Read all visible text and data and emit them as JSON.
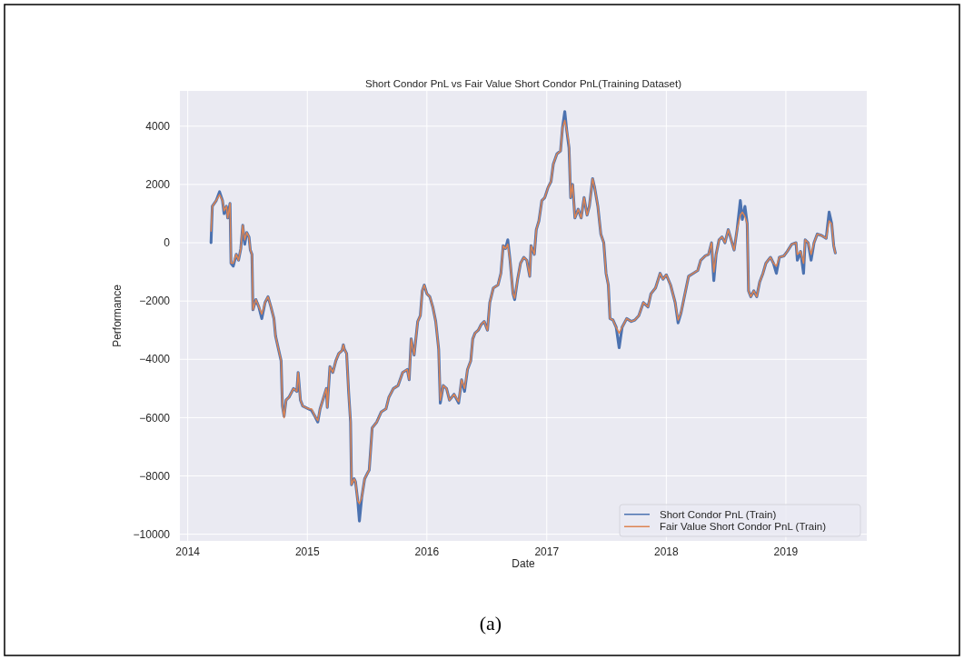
{
  "chart_data": {
    "type": "line",
    "title": "Short Condor PnL vs Fair Value Short Condor PnL(Training Dataset)",
    "xlabel": "Date",
    "ylabel": "Performance",
    "annotations": [
      "(a)"
    ],
    "x": [
      "2014-03-13",
      "2014-03-17",
      "2014-03-29",
      "2014-04-08",
      "2014-04-17",
      "2014-04-22",
      "2014-04-29",
      "2014-05-03",
      "2014-05-10",
      "2014-05-13",
      "2014-05-20",
      "2014-05-29",
      "2014-06-05",
      "2014-06-12",
      "2014-06-18",
      "2014-06-24",
      "2014-06-30",
      "2014-07-07",
      "2014-07-11",
      "2014-07-16",
      "2014-07-19",
      "2014-07-28",
      "2014-08-06",
      "2014-08-15",
      "2014-08-25",
      "2014-09-03",
      "2014-09-12",
      "2014-09-21",
      "2014-09-26",
      "2014-10-05",
      "2014-10-13",
      "2014-10-17",
      "2014-10-22",
      "2014-10-28",
      "2014-11-06",
      "2014-11-20",
      "2014-11-30",
      "2014-12-04",
      "2014-12-11",
      "2014-12-18",
      "2015-01-05",
      "2015-01-14",
      "2015-01-24",
      "2015-02-02",
      "2015-02-09",
      "2015-02-20",
      "2015-02-28",
      "2015-03-03",
      "2015-03-11",
      "2015-03-20",
      "2015-03-29",
      "2015-04-07",
      "2015-04-17",
      "2015-04-21",
      "2015-04-24",
      "2015-05-01",
      "2015-05-07",
      "2015-05-13",
      "2015-05-16",
      "2015-05-24",
      "2015-05-28",
      "2015-06-04",
      "2015-06-09",
      "2015-06-16",
      "2015-06-25",
      "2015-07-04",
      "2015-07-09",
      "2015-07-18",
      "2015-08-01",
      "2015-08-15",
      "2015-08-29",
      "2015-09-07",
      "2015-09-21",
      "2015-10-05",
      "2015-10-19",
      "2015-11-02",
      "2015-11-08",
      "2015-11-14",
      "2015-11-23",
      "2015-12-04",
      "2015-12-12",
      "2015-12-18",
      "2015-12-24",
      "2016-01-01",
      "2016-01-10",
      "2016-01-19",
      "2016-01-28",
      "2016-02-06",
      "2016-02-11",
      "2016-02-20",
      "2016-03-01",
      "2016-03-10",
      "2016-03-24",
      "2016-04-07",
      "2016-04-16",
      "2016-04-25",
      "2016-05-04",
      "2016-05-14",
      "2016-05-20",
      "2016-05-27",
      "2016-06-06",
      "2016-06-15",
      "2016-06-24",
      "2016-07-04",
      "2016-07-11",
      "2016-07-22",
      "2016-08-05",
      "2016-08-14",
      "2016-08-21",
      "2016-08-28",
      "2016-09-04",
      "2016-09-11",
      "2016-09-20",
      "2016-09-25",
      "2016-10-04",
      "2016-10-13",
      "2016-10-23",
      "2016-11-01",
      "2016-11-10",
      "2016-11-14",
      "2016-11-24",
      "2016-11-30",
      "2016-12-08",
      "2016-12-17",
      "2016-12-26",
      "2017-01-05",
      "2017-01-14",
      "2017-01-21",
      "2017-02-01",
      "2017-02-12",
      "2017-02-18",
      "2017-02-25",
      "2017-03-03",
      "2017-03-10",
      "2017-03-15",
      "2017-03-21",
      "2017-03-28",
      "2017-04-07",
      "2017-04-16",
      "2017-04-25",
      "2017-05-04",
      "2017-05-11",
      "2017-05-21",
      "2017-05-27",
      "2017-06-06",
      "2017-06-15",
      "2017-06-24",
      "2017-07-01",
      "2017-07-08",
      "2017-07-13",
      "2017-07-22",
      "2017-08-01",
      "2017-08-10",
      "2017-08-19",
      "2017-09-02",
      "2017-09-16",
      "2017-09-27",
      "2017-10-09",
      "2017-10-23",
      "2017-11-06",
      "2017-11-15",
      "2017-11-29",
      "2017-12-13",
      "2017-12-22",
      "2018-01-01",
      "2018-01-14",
      "2018-01-28",
      "2018-02-06",
      "2018-02-15",
      "2018-02-25",
      "2018-03-10",
      "2018-03-24",
      "2018-04-07",
      "2018-04-16",
      "2018-04-30",
      "2018-05-10",
      "2018-05-19",
      "2018-05-26",
      "2018-06-02",
      "2018-06-11",
      "2018-06-20",
      "2018-06-29",
      "2018-07-09",
      "2018-07-18",
      "2018-07-27",
      "2018-08-05",
      "2018-08-15",
      "2018-08-21",
      "2018-08-29",
      "2018-09-05",
      "2018-09-09",
      "2018-09-16",
      "2018-09-25",
      "2018-10-04",
      "2018-10-13",
      "2018-10-23",
      "2018-11-01",
      "2018-11-15",
      "2018-11-24",
      "2018-12-03",
      "2018-12-12",
      "2018-12-26",
      "2019-01-05",
      "2019-01-19",
      "2019-02-01",
      "2019-02-05",
      "2019-02-15",
      "2019-02-24",
      "2019-03-01",
      "2019-03-10",
      "2019-03-19",
      "2019-03-28",
      "2019-04-07",
      "2019-04-20",
      "2019-05-04",
      "2019-05-13",
      "2019-05-21",
      "2019-05-27",
      "2019-06-01"
    ],
    "series": [
      {
        "name": "Short Condor PnL (Train)",
        "color": "#4c72b0",
        "values": [
          0,
          1250,
          1450,
          1750,
          1450,
          1000,
          1250,
          850,
          1350,
          -700,
          -800,
          -400,
          -600,
          -200,
          600,
          -50,
          350,
          200,
          -250,
          -400,
          -2300,
          -1950,
          -2200,
          -2600,
          -2050,
          -1850,
          -2200,
          -2600,
          -3200,
          -3650,
          -4050,
          -5600,
          -5950,
          -5400,
          -5300,
          -5000,
          -5100,
          -4450,
          -5400,
          -5600,
          -5700,
          -5750,
          -5950,
          -6150,
          -5700,
          -5300,
          -5000,
          -5650,
          -4250,
          -4450,
          -4050,
          -3800,
          -3700,
          -3500,
          -3650,
          -3800,
          -5100,
          -6150,
          -8300,
          -8100,
          -8200,
          -8850,
          -9550,
          -8750,
          -8100,
          -7900,
          -7800,
          -6350,
          -6150,
          -5800,
          -5700,
          -5300,
          -5000,
          -4900,
          -4450,
          -4350,
          -4700,
          -3300,
          -3850,
          -2700,
          -2500,
          -1650,
          -1450,
          -1750,
          -1850,
          -2200,
          -2700,
          -3650,
          -5500,
          -4900,
          -5000,
          -5400,
          -5200,
          -5500,
          -4700,
          -5100,
          -4350,
          -4050,
          -3300,
          -3100,
          -3000,
          -2800,
          -2700,
          -3000,
          -2050,
          -1550,
          -1450,
          -1050,
          -100,
          -200,
          100,
          -600,
          -1750,
          -1950,
          -1250,
          -700,
          -500,
          -600,
          -1150,
          -100,
          -400,
          450,
          750,
          1450,
          1550,
          1900,
          2100,
          2700,
          3050,
          3150,
          3950,
          4500,
          3850,
          3250,
          1550,
          2000,
          850,
          1150,
          850,
          1550,
          950,
          1250,
          2200,
          1900,
          1250,
          300,
          0,
          -1050,
          -1450,
          -2600,
          -2650,
          -2900,
          -3600,
          -2900,
          -2600,
          -2700,
          -2650,
          -2500,
          -2050,
          -2200,
          -1750,
          -1550,
          -1050,
          -1250,
          -1100,
          -1450,
          -2050,
          -2750,
          -2400,
          -1850,
          -1150,
          -1050,
          -950,
          -600,
          -450,
          -400,
          0,
          -1300,
          -400,
          100,
          200,
          0,
          450,
          100,
          -250,
          450,
          1450,
          800,
          1250,
          650,
          -1650,
          -1850,
          -1650,
          -1850,
          -1350,
          -1050,
          -700,
          -500,
          -700,
          -1050,
          -500,
          -450,
          -300,
          -50,
          0,
          -600,
          -300,
          -1050,
          100,
          0,
          -600,
          0,
          300,
          250,
          150,
          1050,
          650,
          -100,
          -350
        ]
      },
      {
        "name": "Fair Value Short Condor PnL (Train)",
        "color": "#dd8452",
        "values": [
          400,
          1250,
          1450,
          1650,
          1450,
          1100,
          1250,
          850,
          1350,
          -700,
          -700,
          -400,
          -600,
          -200,
          600,
          100,
          350,
          200,
          -250,
          -400,
          -2300,
          -1950,
          -2200,
          -2450,
          -2050,
          -1850,
          -2200,
          -2600,
          -3200,
          -3650,
          -4050,
          -5600,
          -6000,
          -5400,
          -5300,
          -5000,
          -5100,
          -4450,
          -5400,
          -5600,
          -5700,
          -5700,
          -5950,
          -6100,
          -5700,
          -5300,
          -5000,
          -5650,
          -4250,
          -4450,
          -4050,
          -3800,
          -3700,
          -3500,
          -3650,
          -3800,
          -5100,
          -6150,
          -8300,
          -8100,
          -8200,
          -8850,
          -8950,
          -8750,
          -8100,
          -7900,
          -7800,
          -6350,
          -6150,
          -5800,
          -5700,
          -5300,
          -5000,
          -4900,
          -4450,
          -4350,
          -4700,
          -3300,
          -3850,
          -2700,
          -2500,
          -1650,
          -1450,
          -1750,
          -1850,
          -2200,
          -2700,
          -3650,
          -5400,
          -4900,
          -5000,
          -5400,
          -5200,
          -5450,
          -4700,
          -5000,
          -4350,
          -4050,
          -3300,
          -3100,
          -3000,
          -2800,
          -2700,
          -3000,
          -2050,
          -1550,
          -1450,
          -1050,
          -100,
          -200,
          -50,
          -600,
          -1750,
          -1900,
          -1250,
          -700,
          -500,
          -600,
          -1150,
          -100,
          -400,
          450,
          750,
          1450,
          1550,
          1900,
          2100,
          2700,
          3050,
          3150,
          3950,
          4200,
          3850,
          3400,
          1550,
          2000,
          850,
          1150,
          850,
          1550,
          950,
          1250,
          2200,
          1900,
          1250,
          300,
          0,
          -1050,
          -1450,
          -2600,
          -2650,
          -2900,
          -3100,
          -2900,
          -2600,
          -2700,
          -2650,
          -2500,
          -2050,
          -2200,
          -1750,
          -1550,
          -1050,
          -1250,
          -1100,
          -1450,
          -2050,
          -2650,
          -2400,
          -1850,
          -1150,
          -1050,
          -950,
          -600,
          -450,
          -400,
          0,
          -1000,
          -400,
          100,
          200,
          0,
          450,
          100,
          -250,
          450,
          950,
          1050,
          900,
          650,
          -1650,
          -1850,
          -1650,
          -1850,
          -1350,
          -1050,
          -700,
          -500,
          -700,
          -800,
          -500,
          -450,
          -300,
          -50,
          0,
          -400,
          -300,
          -700,
          100,
          0,
          -400,
          0,
          300,
          250,
          150,
          750,
          650,
          -100,
          -350
        ]
      }
    ],
    "xlim": [
      "2013-12-08",
      "2019-09-05"
    ],
    "xticks": [
      "2014",
      "2015",
      "2016",
      "2017",
      "2018",
      "2019"
    ],
    "ylim": [
      -10230,
      5210
    ],
    "yticks": [
      {
        "value": -10000,
        "label": "−10000"
      },
      {
        "value": -8000,
        "label": "−8000"
      },
      {
        "value": -6000,
        "label": "−6000"
      },
      {
        "value": -4000,
        "label": "−4000"
      },
      {
        "value": -2000,
        "label": "−2000"
      },
      0,
      2000,
      4000
    ],
    "grid": true,
    "legend": "bottom right"
  }
}
